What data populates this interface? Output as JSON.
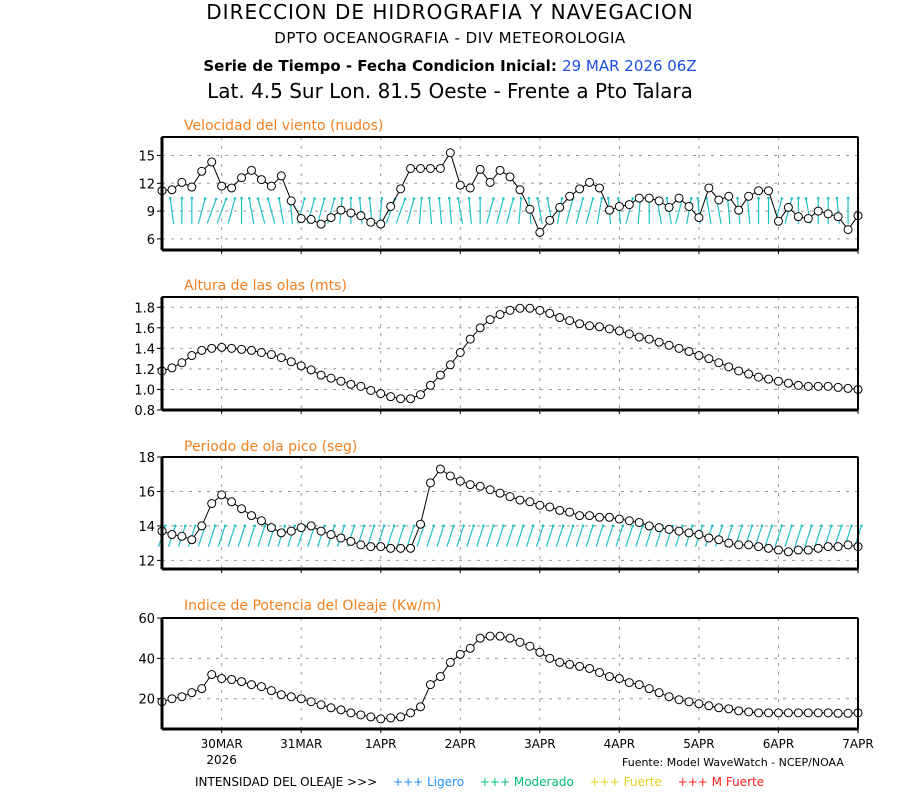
{
  "header": {
    "line1": "DIRECCION DE HIDROGRAFIA Y NAVEGACION",
    "line2": "DPTO OCEANOGRAFIA - DIV METEOROLOGIA",
    "line3_prefix": "Serie de Tiempo - Fecha Condicion Inicial:",
    "line3_date": "29 MAR 2026 06Z",
    "line4": "Lat. 4.5 Sur  Lon. 81.5 Oeste - Frente a Pto Talara"
  },
  "colors": {
    "title_orange": "#f08020",
    "arrow_cyan": "#20c0c8",
    "date_blue": "#1a4fe0",
    "ligero": "#1e90ff",
    "moderado": "#00c070",
    "fuerte": "#e8d020",
    "mfuerte": "#ff2020"
  },
  "x_axis": {
    "ticks": [
      "30MAR",
      "31MAR",
      "1APR",
      "2APR",
      "3APR",
      "4APR",
      "5APR",
      "6APR",
      "7APR"
    ],
    "year_label": "2026",
    "start": "29 MAR 2026 06Z",
    "step_hours": 3
  },
  "footer": {
    "source": "Fuente: Model WaveWatch - NCEP/NOAA",
    "legend_title": "INTENSIDAD DEL OLEAJE >>>",
    "legend_items": [
      {
        "label": "+++ Ligero",
        "color": "#1e90ff"
      },
      {
        "label": "+++ Moderado",
        "color": "#00c070"
      },
      {
        "label": "+++ Fuerte",
        "color": "#e8d020"
      },
      {
        "label": "+++ M Fuerte",
        "color": "#ff2020"
      }
    ]
  },
  "chart_data": [
    {
      "type": "line",
      "title": "Velocidad del viento (nudos)",
      "ylim": [
        4.8,
        17
      ],
      "yticks": [
        6,
        9,
        12,
        15
      ],
      "ytick_labels": [
        "6",
        "9",
        "12",
        "15"
      ],
      "grid": true,
      "values": [
        11.2,
        11.3,
        12.1,
        11.6,
        13.3,
        14.3,
        11.7,
        11.5,
        12.6,
        13.4,
        12.4,
        11.7,
        12.8,
        10.1,
        8.2,
        8.1,
        7.6,
        8.3,
        9.1,
        8.8,
        8.5,
        7.8,
        7.6,
        9.5,
        11.4,
        13.6,
        13.6,
        13.6,
        13.6,
        15.3,
        11.8,
        11.5,
        13.5,
        12.1,
        13.4,
        12.7,
        11.3,
        9.2,
        6.7,
        8.0,
        9.4,
        10.6,
        11.4,
        12.1,
        11.5,
        9.1,
        9.5,
        9.7,
        10.4,
        10.4,
        10.1,
        9.4,
        10.4,
        9.5,
        8.3,
        11.5,
        10.2,
        10.6,
        9.1,
        10.6,
        11.2,
        11.2,
        7.9,
        9.4,
        8.4,
        8.2,
        9.0,
        8.7,
        8.4,
        7.0,
        8.5
      ],
      "direction_arrows": {
        "y_value": 9.0,
        "tilt_deg": [
          0,
          -8,
          0,
          0,
          15,
          20,
          20,
          15,
          0,
          -10,
          -15,
          -15,
          -10,
          -5,
          15,
          15,
          15,
          15,
          5,
          0,
          -5,
          -5,
          5,
          20,
          20,
          15,
          5,
          -5,
          -5,
          -5,
          -10,
          -5,
          0,
          15,
          15,
          15,
          5,
          -5,
          -10,
          -10,
          10,
          15,
          15,
          15,
          10,
          -5,
          -5,
          15,
          5,
          0,
          -10,
          -10,
          15,
          10,
          -5,
          -10,
          -10,
          -5,
          -5,
          -5,
          0,
          0,
          15,
          15,
          0,
          -10,
          0,
          0,
          -5,
          0,
          0
        ]
      }
    },
    {
      "type": "line",
      "title": "Altura de las olas (mts)",
      "ylim": [
        0.8,
        1.9
      ],
      "yticks": [
        0.8,
        1.0,
        1.2,
        1.4,
        1.6,
        1.8
      ],
      "ytick_labels": [
        "0.8",
        "1.0",
        "1.2",
        "1.4",
        "1.6",
        "1.8"
      ],
      "grid": true,
      "values": [
        1.18,
        1.21,
        1.26,
        1.33,
        1.38,
        1.4,
        1.41,
        1.4,
        1.39,
        1.38,
        1.36,
        1.34,
        1.31,
        1.27,
        1.23,
        1.19,
        1.14,
        1.11,
        1.08,
        1.05,
        1.03,
        0.99,
        0.96,
        0.93,
        0.91,
        0.91,
        0.95,
        1.04,
        1.14,
        1.24,
        1.36,
        1.49,
        1.6,
        1.68,
        1.73,
        1.77,
        1.79,
        1.79,
        1.77,
        1.74,
        1.7,
        1.67,
        1.64,
        1.62,
        1.61,
        1.59,
        1.57,
        1.54,
        1.51,
        1.49,
        1.46,
        1.43,
        1.4,
        1.37,
        1.33,
        1.3,
        1.26,
        1.22,
        1.18,
        1.15,
        1.12,
        1.1,
        1.08,
        1.06,
        1.04,
        1.03,
        1.03,
        1.03,
        1.02,
        1.01,
        1.0
      ]
    },
    {
      "type": "line",
      "title": "Periodo de ola pico (seg)",
      "ylim": [
        11.5,
        18
      ],
      "yticks": [
        12,
        14,
        16,
        18
      ],
      "ytick_labels": [
        "12",
        "14",
        "16",
        "18"
      ],
      "grid": true,
      "values": [
        13.7,
        13.5,
        13.4,
        13.2,
        14.0,
        15.3,
        15.8,
        15.4,
        15.0,
        14.6,
        14.3,
        13.9,
        13.6,
        13.7,
        13.9,
        14.0,
        13.7,
        13.5,
        13.3,
        13.1,
        12.9,
        12.8,
        12.8,
        12.7,
        12.7,
        12.7,
        14.1,
        16.5,
        17.3,
        16.9,
        16.6,
        16.4,
        16.3,
        16.1,
        15.9,
        15.7,
        15.5,
        15.4,
        15.2,
        15.1,
        14.9,
        14.8,
        14.6,
        14.6,
        14.5,
        14.5,
        14.4,
        14.3,
        14.2,
        14.0,
        13.9,
        13.8,
        13.7,
        13.6,
        13.5,
        13.3,
        13.2,
        13.0,
        12.9,
        12.9,
        12.8,
        12.7,
        12.6,
        12.5,
        12.6,
        12.6,
        12.7,
        12.8,
        12.8,
        12.9,
        12.8
      ],
      "direction_arrows": {
        "y_value": 13.4,
        "tilt_deg": 18
      }
    },
    {
      "type": "line",
      "title": "Indice de Potencia del Oleaje (Kw/m)",
      "ylim": [
        5,
        60
      ],
      "yticks": [
        20,
        40,
        60
      ],
      "ytick_labels": [
        "20",
        "40",
        "60"
      ],
      "grid": true,
      "values": [
        18.5,
        20,
        21,
        23,
        25,
        32,
        30,
        29.5,
        28.5,
        27,
        26,
        24,
        22,
        21,
        20,
        18.5,
        17,
        15.5,
        14.5,
        13,
        12,
        11,
        10,
        10.5,
        11,
        13,
        16,
        27,
        31,
        38,
        42,
        45,
        50,
        51,
        51,
        50,
        48,
        46,
        43,
        40,
        38,
        37,
        36,
        35,
        33,
        31,
        30,
        28,
        27,
        25,
        23,
        21,
        19.5,
        18.5,
        17.5,
        16.5,
        15.5,
        15,
        14,
        13.5,
        13,
        13,
        13,
        13,
        13,
        13,
        13,
        13,
        12.8,
        12.8,
        13
      ]
    }
  ]
}
